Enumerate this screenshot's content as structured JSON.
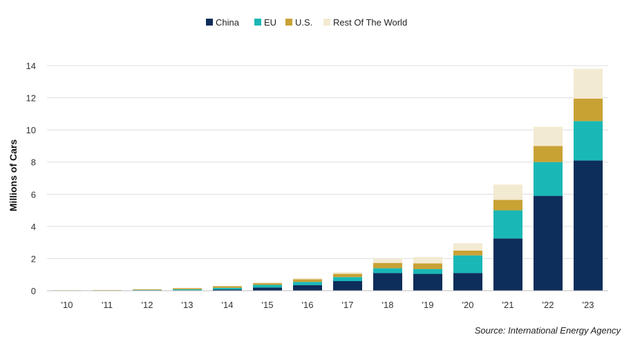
{
  "chart_data": {
    "type": "bar",
    "stacked": true,
    "categories": [
      "'10",
      "'11",
      "'12",
      "'13",
      "'14",
      "'15",
      "'16",
      "'17",
      "'18",
      "'19",
      "'20",
      "'21",
      "'22",
      "'23"
    ],
    "series": [
      {
        "name": "China",
        "color": "#0d2d5a",
        "values": [
          0.01,
          0.01,
          0.02,
          0.03,
          0.08,
          0.2,
          0.35,
          0.6,
          1.1,
          1.05,
          1.1,
          3.25,
          5.9,
          8.1
        ]
      },
      {
        "name": "EU",
        "color": "#19b8b6",
        "values": [
          0.01,
          0.01,
          0.03,
          0.06,
          0.1,
          0.17,
          0.2,
          0.25,
          0.3,
          0.3,
          1.1,
          1.75,
          2.1,
          2.45
        ]
      },
      {
        "name": "U.S.",
        "color": "#c9a234",
        "values": [
          0.01,
          0.02,
          0.04,
          0.07,
          0.1,
          0.1,
          0.16,
          0.2,
          0.33,
          0.35,
          0.3,
          0.65,
          1.0,
          1.4
        ]
      },
      {
        "name": "Rest Of The World",
        "color": "#f3ead2",
        "values": [
          0.0,
          0.0,
          0.01,
          0.02,
          0.02,
          0.05,
          0.09,
          0.1,
          0.27,
          0.4,
          0.45,
          0.95,
          1.2,
          1.85
        ]
      }
    ],
    "ylabel": "Millions of Cars",
    "ylim": [
      0,
      14
    ],
    "yticks": [
      0,
      2,
      4,
      6,
      8,
      10,
      12,
      14
    ],
    "grid": true,
    "legend_position": "top-center"
  },
  "source": "Source: International Energy Agency"
}
